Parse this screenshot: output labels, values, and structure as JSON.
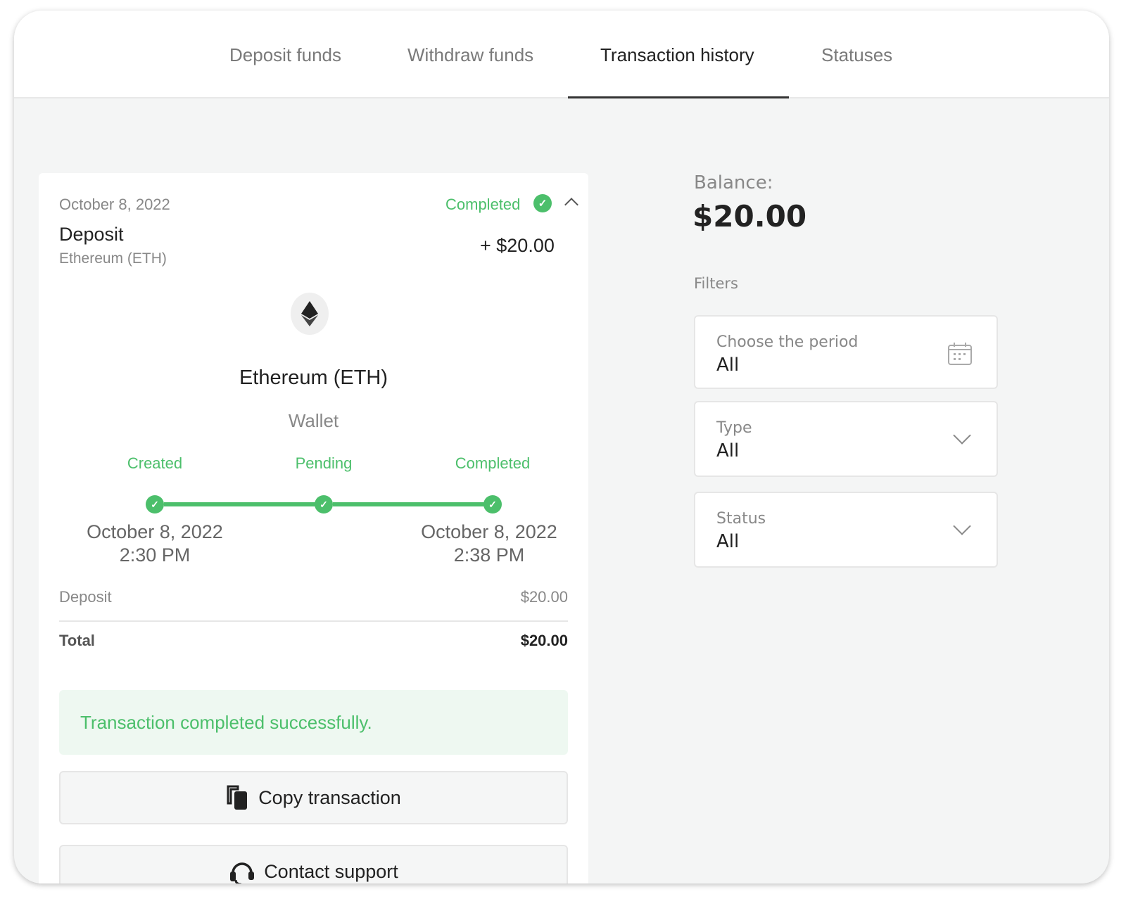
{
  "tabs": [
    {
      "label": "Deposit funds",
      "active": false
    },
    {
      "label": "Withdraw funds",
      "active": false
    },
    {
      "label": "Transaction history",
      "active": true
    },
    {
      "label": "Statuses",
      "active": false
    }
  ],
  "transaction": {
    "date": "October 8, 2022",
    "status": "Completed",
    "type": "Deposit",
    "method": "Ethereum (ETH)",
    "amount": "+ $20.00",
    "currency_name": "Ethereum (ETH)",
    "source": "Wallet",
    "steps": [
      {
        "label": "Created",
        "date": "October 8, 2022",
        "time": "2:30 PM"
      },
      {
        "label": "Pending",
        "date": "",
        "time": ""
      },
      {
        "label": "Completed",
        "date": "October 8, 2022",
        "time": "2:38 PM"
      }
    ],
    "lines": [
      {
        "label": "Deposit",
        "value": "$20.00"
      }
    ],
    "total": {
      "label": "Total",
      "value": "$20.00"
    },
    "message": "Transaction completed successfully.",
    "copy_label": "Copy transaction",
    "support_label": "Contact support"
  },
  "sidebar": {
    "balance_label": "Balance:",
    "balance": "$20.00",
    "filters_label": "Filters",
    "filters": [
      {
        "label": "Choose the period",
        "value": "All",
        "icon": "calendar-icon"
      },
      {
        "label": "Type",
        "value": "All",
        "icon": "chevron-down-icon"
      },
      {
        "label": "Status",
        "value": "All",
        "icon": "chevron-down-icon"
      }
    ]
  },
  "colors": {
    "accent": "#4cbf6b",
    "success_bg": "#eef8f1"
  }
}
